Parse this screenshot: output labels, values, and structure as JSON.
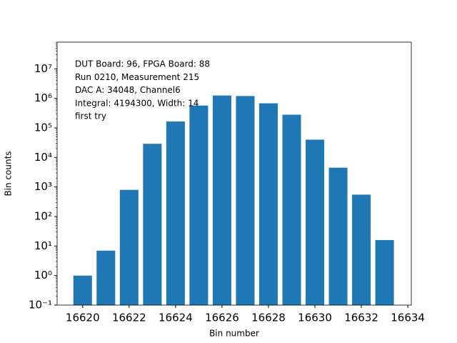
{
  "chart_data": {
    "type": "bar",
    "x": [
      16620,
      16621,
      16622,
      16623,
      16624,
      16625,
      16626,
      16627,
      16628,
      16629,
      16630,
      16631,
      16632,
      16633
    ],
    "values": [
      1,
      7,
      800,
      29000,
      165000,
      570000,
      1250000,
      1200000,
      680000,
      280000,
      40000,
      4500,
      550,
      16
    ],
    "color": "#1f77b4",
    "xlabel": "Bin number",
    "ylabel": "Bin counts",
    "annotation": [
      "DUT Board: 96, FPGA Board: 88",
      "Run 0210, Measurement 215",
      "DAC A: 34048, Channel6",
      "Integral: 4194300, Width: 14",
      "first try"
    ],
    "xlim": [
      16618.9,
      16634.15
    ],
    "xticks": [
      16620,
      16622,
      16624,
      16626,
      16628,
      16630,
      16632,
      16634
    ],
    "ylim": [
      0.1,
      80000000
    ],
    "ylog": true,
    "yticks": [
      {
        "value": 0.1,
        "label": "10⁻¹"
      },
      {
        "value": 1,
        "label": "10⁰"
      },
      {
        "value": 10,
        "label": "10¹"
      },
      {
        "value": 100,
        "label": "10²"
      },
      {
        "value": 1000,
        "label": "10³"
      },
      {
        "value": 10000,
        "label": "10⁴"
      },
      {
        "value": 100000,
        "label": "10⁵"
      },
      {
        "value": 1000000,
        "label": "10⁶"
      },
      {
        "value": 10000000,
        "label": "10⁷"
      }
    ]
  }
}
